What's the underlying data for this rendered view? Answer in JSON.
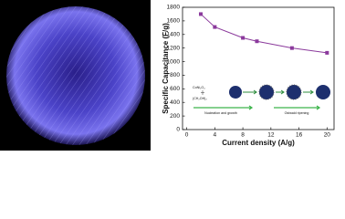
{
  "chart_data": {
    "type": "line",
    "x_label": "Current density (A/g)",
    "y_label": "Specific Capacitance (F/g)",
    "x": [
      2,
      4,
      8,
      10,
      15,
      20
    ],
    "values": [
      1700,
      1510,
      1350,
      1300,
      1200,
      1130
    ],
    "color": "#8b3a9c",
    "xlim": [
      -0.6,
      21
    ],
    "xticks": [
      0,
      4,
      8,
      12,
      16,
      20
    ],
    "ylim": [
      0,
      1800
    ],
    "yticks": [
      0,
      200,
      400,
      600,
      800,
      1000,
      1200,
      1400,
      1600,
      1800
    ],
    "inset": {
      "reagent_1": "CoNi₂O₄",
      "reagent_2": "(CH₂OH)₂",
      "step_1": "Nucleation and growth",
      "step_2": "Ostwald ripening"
    }
  }
}
